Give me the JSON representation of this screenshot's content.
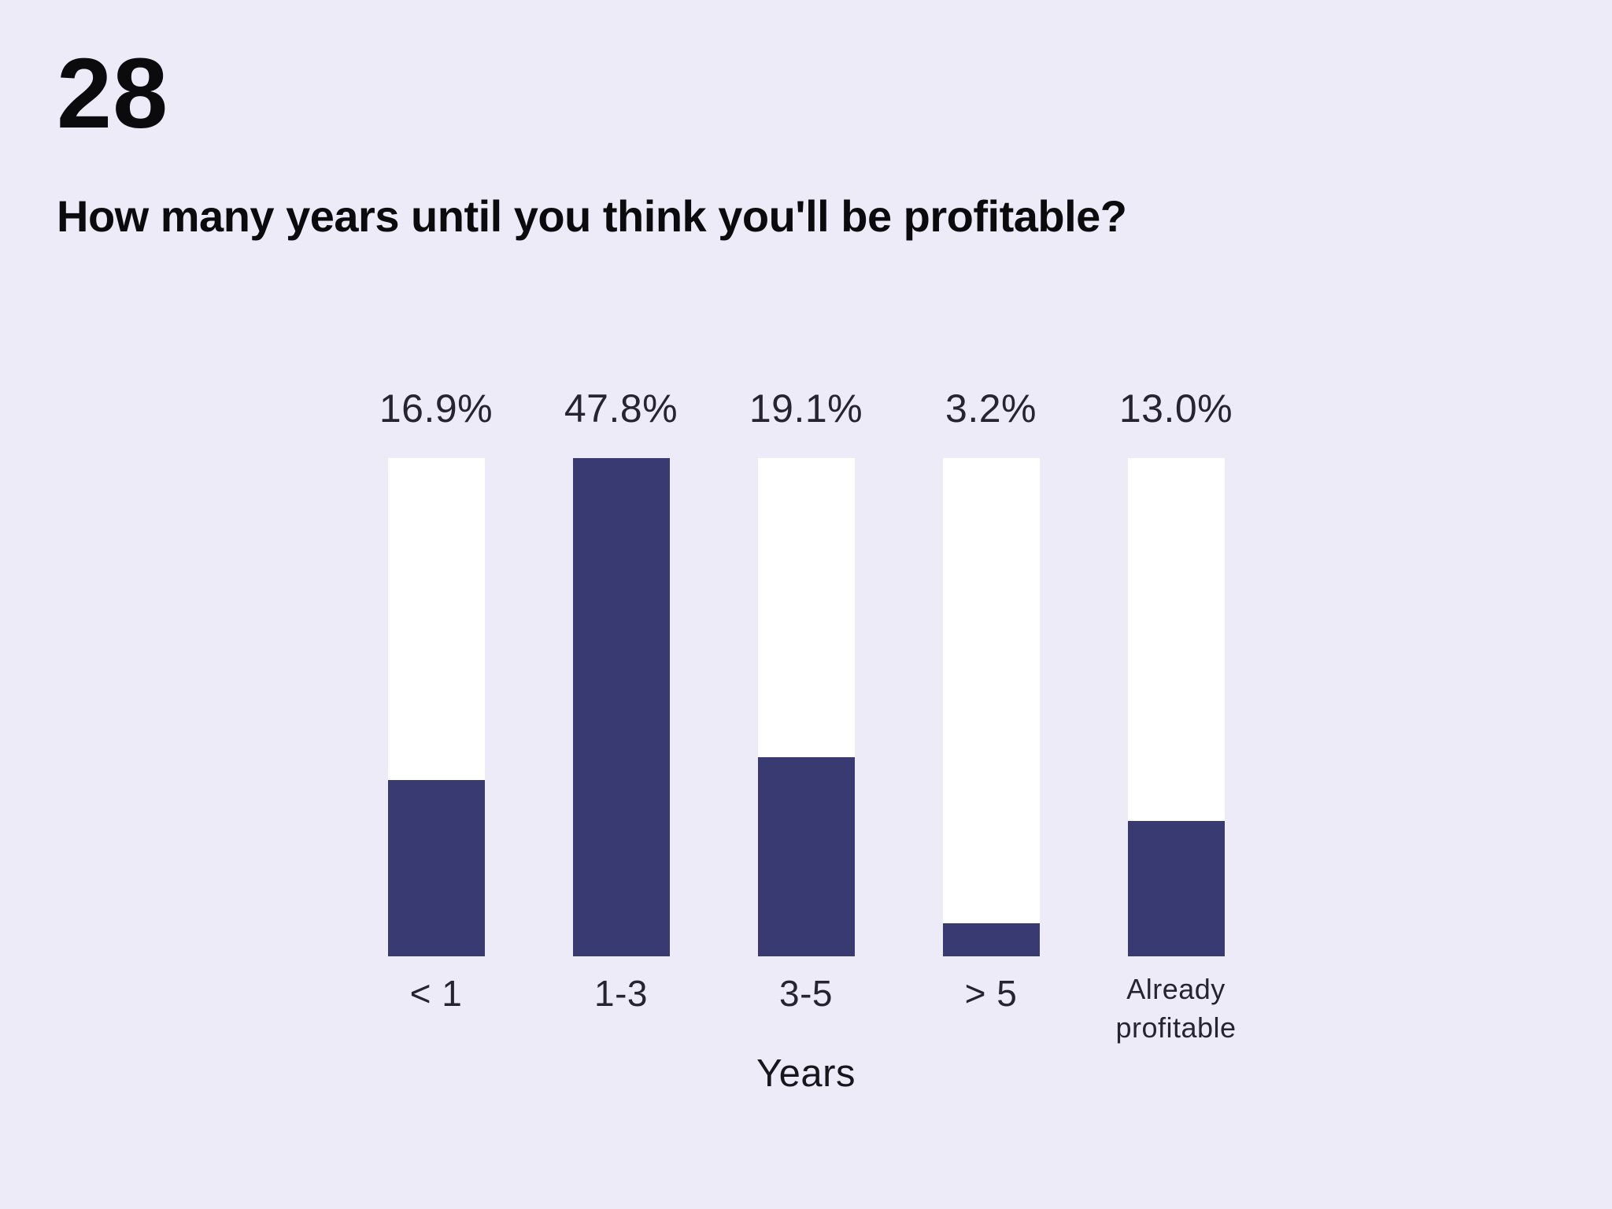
{
  "header": {
    "question_number": "28",
    "title": "How many years until you think you'll be profitable?"
  },
  "chart_data": {
    "type": "bar",
    "title": "How many years until you think you'll be profitable?",
    "categories": [
      "< 1",
      "1-3",
      "3-5",
      "> 5",
      "Already profitable"
    ],
    "values": [
      16.9,
      47.8,
      19.1,
      3.2,
      13.0
    ],
    "value_labels": [
      "16.9%",
      "47.8%",
      "19.1%",
      "3.2%",
      "13.0%"
    ],
    "xlabel": "Years",
    "ylabel": "",
    "ylim": [
      0,
      47.8
    ],
    "grid": false,
    "legend_position": "none",
    "layout_hint": "vertical bars with full-height white tracks; fill height scaled to max value",
    "colors": {
      "background": "#EDEBF8",
      "bar_track": "#FFFFFF",
      "bar_fill": "#3A3A73",
      "label_text": "#26242E",
      "axis_text": "#17161C",
      "heading_text": "#0B0B0D"
    }
  }
}
